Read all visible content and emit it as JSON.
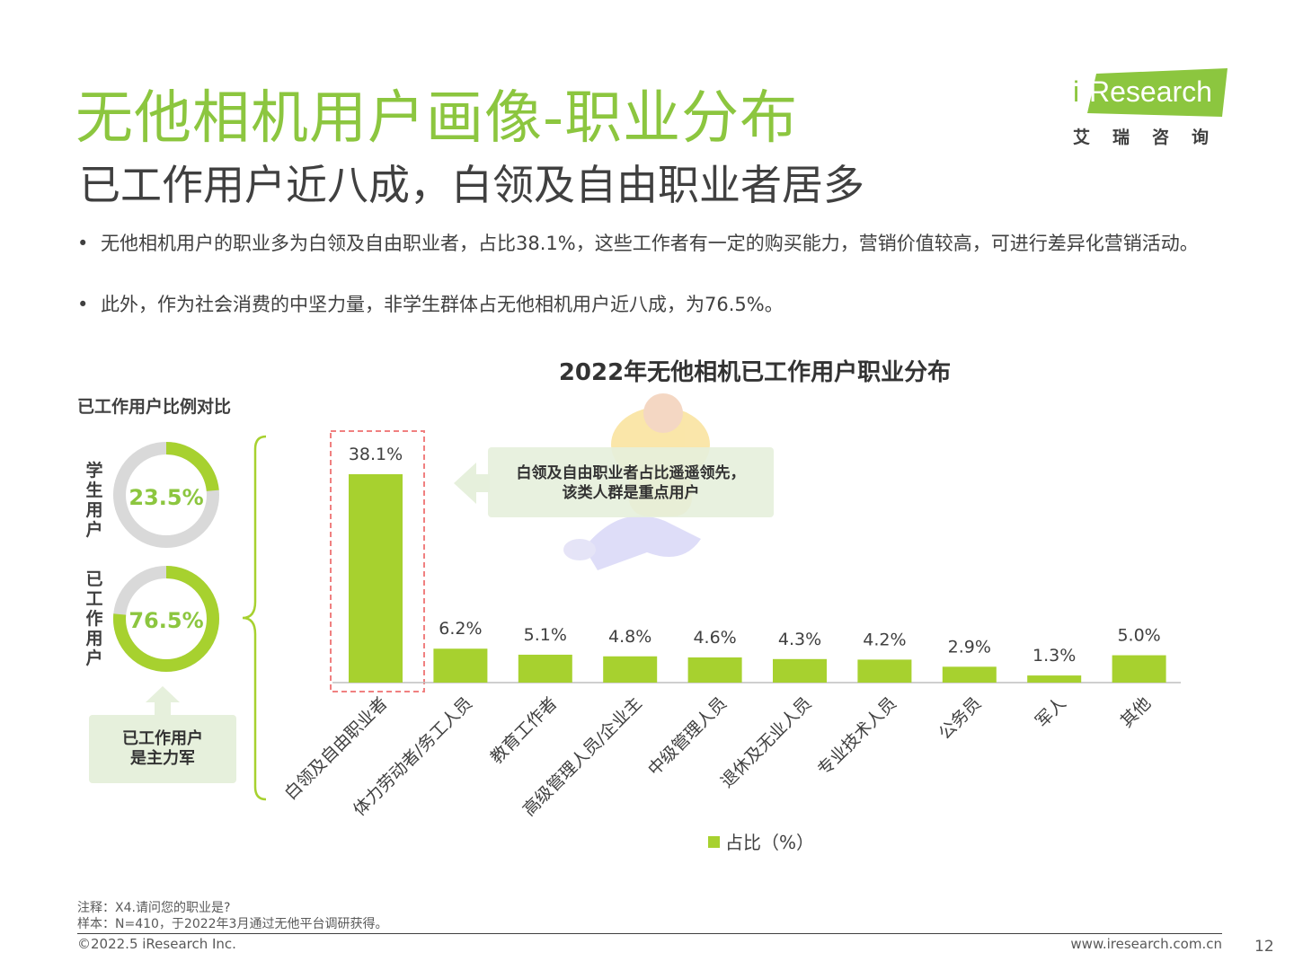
{
  "header": {
    "title": "无他相机用户画像-职业分布",
    "subtitle": "已工作用户近八成，白领及自由职业者居多"
  },
  "logo": {
    "word_i": "i",
    "word": "Research",
    "cn": "艾瑞咨询",
    "color": "#8cc63f"
  },
  "bullets": [
    "无他相机用户的职业多为白领及自由职业者，占比38.1%，这些工作者有一定的购买能力，营销价值较高，可进行差异化营销活动。",
    "此外，作为社会消费的中坚力量，非学生群体占无他相机用户近八成，为76.5%。"
  ],
  "bullet_marker": "•",
  "ratio": {
    "title": "已工作用户比例对比",
    "student": {
      "label": "学生用户",
      "value_text": "23.5%",
      "value": 23.5
    },
    "worker": {
      "label": "已工作用户",
      "value_text": "76.5%",
      "value": 76.5
    },
    "main_box": [
      "已工作用户",
      "是主力军"
    ]
  },
  "callout": [
    "白领及自由职业者占比遥遥领先，",
    "该类人群是重点用户"
  ],
  "chart_data": {
    "type": "bar",
    "title": "2022年无他相机已工作用户职业分布",
    "categories": [
      "白领及自由职业者",
      "体力劳动者/务工人员",
      "教育工作者",
      "高级管理人员/企业主",
      "中级管理人员",
      "退休及无业人员",
      "专业技术人员",
      "公务员",
      "军人",
      "其他"
    ],
    "series": [
      {
        "name": "占比（%）",
        "values": [
          38.1,
          6.2,
          5.1,
          4.8,
          4.6,
          4.3,
          4.2,
          2.9,
          1.3,
          5.0
        ]
      }
    ],
    "value_labels": [
      "38.1%",
      "6.2%",
      "5.1%",
      "4.8%",
      "4.6%",
      "4.3%",
      "4.2%",
      "2.9%",
      "1.3%",
      "5.0%"
    ],
    "ylim": [
      0,
      40
    ],
    "legend_position": "bottom",
    "highlight_index": 0,
    "bar_color": "#a7d12f",
    "grid": false
  },
  "footer": {
    "note": "注释：X4.请问您的职业是?",
    "sample": "样本：N=410，于2022年3月通过无他平台调研获得。",
    "copyright": "©2022.5 iResearch Inc.",
    "website": "www.iresearch.com.cn",
    "page": "12"
  }
}
